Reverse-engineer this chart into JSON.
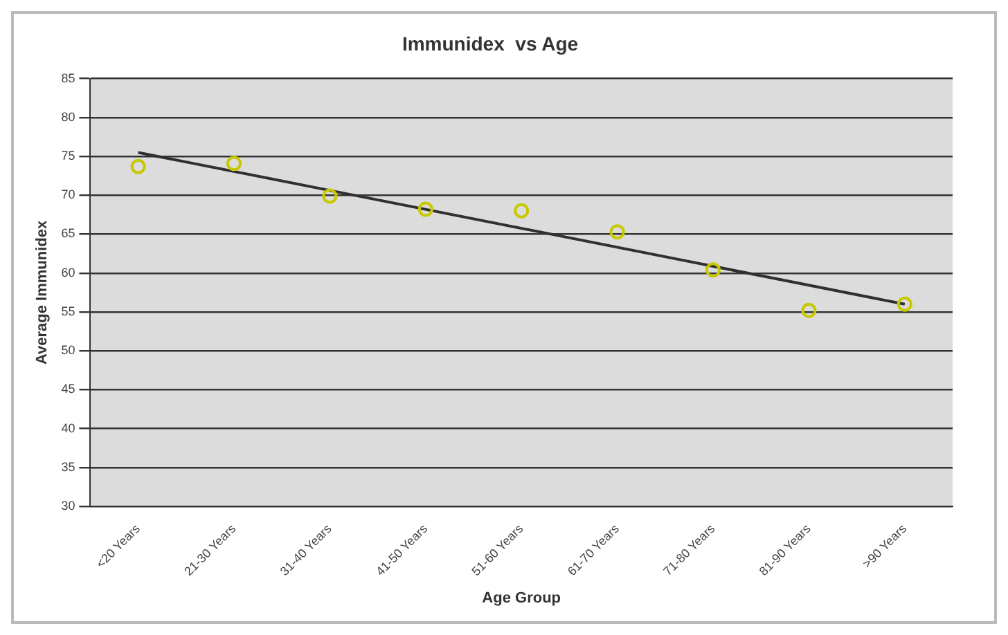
{
  "chart_data": {
    "type": "scatter",
    "title": "Immunidex  vs Age",
    "xlabel": "Age Group",
    "ylabel": "Average Immunidex",
    "categories": [
      "<20 Years",
      "21-30 Years",
      "31-40 Years",
      "41-50 Years",
      "51-60 Years",
      "61-70 Years",
      "71-80 Years",
      "81-90 Years",
      ">90 Years"
    ],
    "series": [
      {
        "color": "#c8c800",
        "marker": "circle",
        "values": [
          73.7,
          74.1,
          69.9,
          68.2,
          68.0,
          65.3,
          60.4,
          55.2,
          56.0
        ]
      },
      {
        "type": "line",
        "color": "#303030",
        "marker": "none",
        "line_style": "solid",
        "values": [
          75.5,
          null,
          null,
          null,
          null,
          null,
          null,
          null,
          56.0
        ]
      }
    ],
    "ylim": [
      30,
      85
    ],
    "yticks": [
      30,
      35,
      40,
      45,
      50,
      55,
      60,
      65,
      70,
      75,
      80,
      85
    ],
    "grid": "y",
    "legend": false
  }
}
